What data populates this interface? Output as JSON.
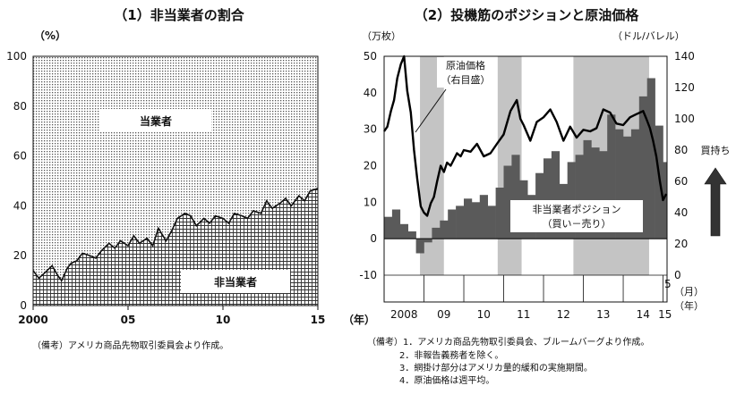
{
  "page": {
    "footnote_left": "（備考）アメリカ商品先物取引委員会より作成。",
    "footnote_right": [
      "（備考）1．アメリカ商品先物取引委員会、ブルームバーグより作成。",
      "2．非報告義務者を除く。",
      "3．網掛け部分はアメリカ量的緩和の実施期間。",
      "4．原油価格は週平均。"
    ]
  },
  "chart_data": [
    {
      "type": "area",
      "title": "（1）非当業者の割合",
      "ylabel": "（%）",
      "ylim": [
        0,
        100
      ],
      "yticks": [
        "0",
        "20",
        "40",
        "60",
        "80",
        "100"
      ],
      "xlim": [
        2000,
        2015
      ],
      "xticks": [
        {
          "value": 2000,
          "label": "2000"
        },
        {
          "value": 2005,
          "label": "05"
        },
        {
          "value": 2010,
          "label": "10"
        },
        {
          "value": 2015,
          "label": "15"
        }
      ],
      "series": [
        {
          "name": "非当業者",
          "pattern": "grid",
          "x": [
            2000.0,
            2000.3,
            2000.6,
            2001.0,
            2001.3,
            2001.5,
            2001.8,
            2002.0,
            2002.3,
            2002.6,
            2003.0,
            2003.3,
            2003.6,
            2004.0,
            2004.3,
            2004.6,
            2005.0,
            2005.3,
            2005.6,
            2006.0,
            2006.3,
            2006.6,
            2007.0,
            2007.3,
            2007.6,
            2008.0,
            2008.3,
            2008.6,
            2009.0,
            2009.3,
            2009.6,
            2010.0,
            2010.3,
            2010.6,
            2011.0,
            2011.3,
            2011.6,
            2012.0,
            2012.3,
            2012.6,
            2013.0,
            2013.3,
            2013.6,
            2014.0,
            2014.3,
            2014.6,
            2015.0
          ],
          "values": [
            14,
            11,
            13,
            16,
            12,
            10,
            15,
            17,
            18,
            21,
            20,
            19,
            22,
            25,
            23,
            26,
            24,
            28,
            25,
            27,
            24,
            31,
            26,
            30,
            35,
            37,
            36,
            32,
            35,
            33,
            36,
            35,
            33,
            37,
            36,
            35,
            38,
            37,
            42,
            39,
            41,
            43,
            40,
            44,
            42,
            46,
            47
          ]
        },
        {
          "name": "当業者",
          "pattern": "dots"
        }
      ]
    },
    {
      "type": "bar+line",
      "title": "（2）投機筋のポジションと原油価格",
      "ylabel_left": "（万枚）",
      "ylabel_right": "（ドル/バレル）",
      "ylim_left": [
        -10,
        50
      ],
      "yticks_left": [
        "-10",
        "0",
        "10",
        "20",
        "30",
        "40",
        "50"
      ],
      "ylim_right": [
        0,
        140
      ],
      "yticks_right": [
        "0",
        "20",
        "40",
        "60",
        "80",
        "100",
        "120",
        "140"
      ],
      "xlim": [
        2008.0,
        2015.1
      ],
      "year_labels": [
        {
          "label": "2008",
          "x": 2008.5
        },
        {
          "label": "09",
          "x": 2009.5
        },
        {
          "label": "10",
          "x": 2010.5
        },
        {
          "label": "11",
          "x": 2011.5
        },
        {
          "label": "12",
          "x": 2012.5
        },
        {
          "label": "13",
          "x": 2013.5
        },
        {
          "label": "14",
          "x": 2014.5
        },
        {
          "label": "15",
          "x": 2015.05
        }
      ],
      "month_tick": {
        "label": "5",
        "x": 2015.0
      },
      "unit_month": "（月）",
      "unit_year": "（年）",
      "unit_year_left": "（年）",
      "annotation_oil": [
        "原油価格",
        "（右目盛）"
      ],
      "annotation_position": [
        "非当業者ポジション",
        "（買い－売り）"
      ],
      "arrow_label": "買持ち",
      "shaded_periods": [
        [
          2008.9,
          2009.5
        ],
        [
          2010.85,
          2011.45
        ],
        [
          2012.75,
          2014.65
        ]
      ],
      "series": [
        {
          "name": "非当業者ポジション（買い－売り）",
          "axis": "left",
          "unit": "万枚",
          "x": [
            2008.0,
            2008.2,
            2008.4,
            2008.6,
            2008.8,
            2009.0,
            2009.2,
            2009.4,
            2009.6,
            2009.8,
            2010.0,
            2010.2,
            2010.4,
            2010.6,
            2010.8,
            2011.0,
            2011.2,
            2011.4,
            2011.6,
            2011.8,
            2012.0,
            2012.2,
            2012.4,
            2012.6,
            2012.8,
            2013.0,
            2013.2,
            2013.4,
            2013.6,
            2013.8,
            2014.0,
            2014.2,
            2014.4,
            2014.6,
            2014.8,
            2015.0,
            2015.1
          ],
          "values": [
            6,
            8,
            4,
            2,
            -4,
            -1,
            3,
            5,
            8,
            9,
            11,
            10,
            12,
            9,
            14,
            20,
            23,
            16,
            12,
            18,
            22,
            24,
            15,
            21,
            23,
            27,
            25,
            24,
            34,
            30,
            28,
            30,
            39,
            44,
            31,
            21,
            34
          ]
        },
        {
          "name": "原油価格",
          "axis": "right",
          "unit": "ドル/バレル",
          "x": [
            2008.0,
            2008.08,
            2008.17,
            2008.25,
            2008.33,
            2008.42,
            2008.5,
            2008.58,
            2008.67,
            2008.75,
            2008.83,
            2008.92,
            2009.0,
            2009.08,
            2009.17,
            2009.25,
            2009.33,
            2009.42,
            2009.5,
            2009.58,
            2009.67,
            2009.75,
            2009.83,
            2009.92,
            2010.0,
            2010.17,
            2010.33,
            2010.5,
            2010.67,
            2010.83,
            2011.0,
            2011.17,
            2011.33,
            2011.42,
            2011.5,
            2011.67,
            2011.83,
            2012.0,
            2012.17,
            2012.33,
            2012.5,
            2012.67,
            2012.83,
            2013.0,
            2013.17,
            2013.33,
            2013.5,
            2013.67,
            2013.83,
            2014.0,
            2014.17,
            2014.33,
            2014.5,
            2014.58,
            2014.67,
            2014.75,
            2014.83,
            2014.92,
            2015.0,
            2015.08
          ],
          "values": [
            92,
            95,
            105,
            112,
            126,
            135,
            140,
            118,
            104,
            80,
            62,
            44,
            40,
            38,
            46,
            50,
            60,
            70,
            66,
            72,
            70,
            74,
            78,
            76,
            80,
            79,
            84,
            76,
            78,
            84,
            90,
            105,
            112,
            100,
            96,
            86,
            98,
            101,
            106,
            98,
            86,
            95,
            88,
            93,
            92,
            94,
            106,
            104,
            97,
            96,
            101,
            103,
            105,
            100,
            94,
            86,
            76,
            60,
            48,
            52
          ]
        }
      ]
    }
  ]
}
